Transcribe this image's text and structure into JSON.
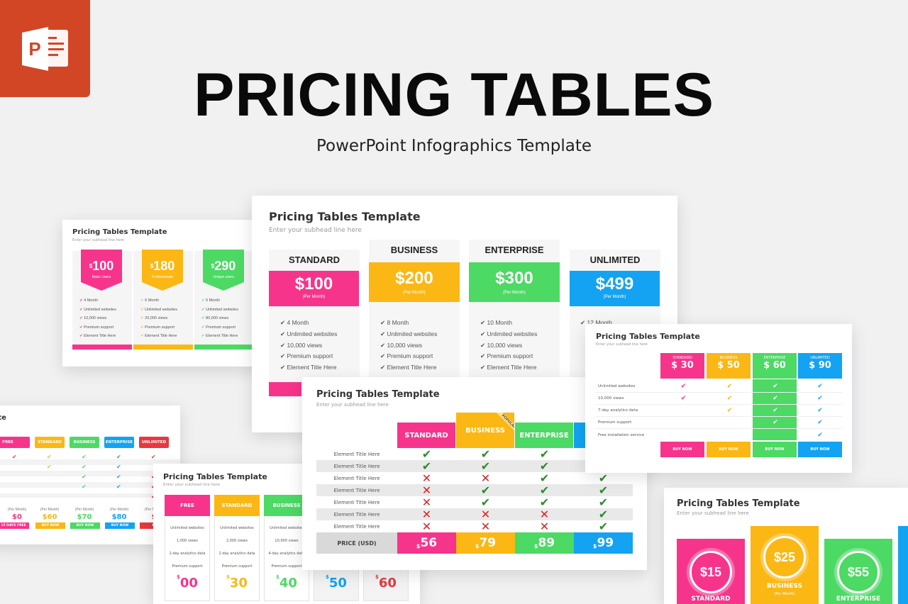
{
  "header": {
    "title": "PRICING TABLES",
    "subtitle": "PowerPoint Infographics Template"
  },
  "colors": {
    "pink": "#f7348b",
    "yellow": "#fbb714",
    "green": "#4cd964",
    "blue": "#13a3f2",
    "red": "#e8383d",
    "ppt_orange": "#d24625"
  },
  "icons": [
    "powerpoint-icon",
    "check-icon",
    "x-icon",
    "check-circle-icon"
  ],
  "slide_title": "Pricing Tables Template",
  "slide_subhead": "Enter your subhead line here",
  "s1": {
    "plans": [
      {
        "price": "100",
        "note": "Basic Users"
      },
      {
        "price": "180",
        "note": "Professionals"
      },
      {
        "price": "290",
        "note": "Unique users"
      }
    ],
    "features": [
      "4 Month",
      "Unlimited websites",
      "10,000 views",
      "Premium support",
      "Element Title Here"
    ],
    "features_b": [
      "6 Month",
      "Unlimited websites",
      "20,000 views",
      "Premium support",
      "Element Title Here"
    ],
    "features_c": [
      "6 Month",
      "Unlimited websites",
      "80,000 views",
      "Premium support",
      "Element Title Here"
    ]
  },
  "s2": {
    "plans": [
      {
        "name": "STANDARD",
        "price": "$100",
        "per": "(Per Month)",
        "features": [
          "4 Month",
          "Unlimited websites",
          "10,000 views",
          "Premium support",
          "Element Title Here"
        ]
      },
      {
        "name": "BUSINESS",
        "price": "$200",
        "per": "(Per Month)",
        "features": [
          "8 Month",
          "Unlimited websites",
          "10,000 views",
          "Premium support",
          "Element Title Here"
        ]
      },
      {
        "name": "ENTERPRISE",
        "price": "$300",
        "per": "(Per Month)",
        "features": [
          "10 Month",
          "Unlimited websites",
          "10,000 views",
          "Premium support",
          "Element Title Here"
        ]
      },
      {
        "name": "UNLIMITED",
        "price": "$499",
        "per": "(Per Month)",
        "features": [
          "12 Month"
        ]
      }
    ]
  },
  "s3": {
    "title_partial": "plate",
    "plans": [
      "FREE",
      "STANDARD",
      "BUSINESS",
      "ENTERPRISE",
      "UNLIMITED"
    ],
    "per": "(Per Month)",
    "prices": [
      "$0",
      "$60",
      "$70",
      "$80",
      "$"
    ],
    "buttons": [
      "15 DAYS FREE",
      "BUY NOW",
      "BUY NOW",
      "BUY NOW",
      "BU"
    ]
  },
  "s4": {
    "plans": [
      "FREE",
      "STANDARD",
      "BUSINESS"
    ],
    "rows": [
      [
        "Unlimited websites",
        "Unlimited websites",
        "Unlimited websites"
      ],
      [
        "1,000 views",
        "2,000 views",
        "10,000 views"
      ],
      [
        "1-day analytics data",
        "2-day analytics data",
        "4-day analytics data"
      ],
      [
        "Premium support",
        "Premium support",
        "Premium support"
      ]
    ],
    "prices": [
      "00",
      "30",
      "40",
      "50",
      "60"
    ]
  },
  "s5": {
    "plans": [
      "STANDARD",
      "BUSINESS",
      "ENTERPRISE"
    ],
    "ribbon": "POPULAR",
    "rows": [
      "Element Title Here",
      "Element Title Here",
      "Element Title Here",
      "Element Title Here",
      "Element Title Here",
      "Element Title Here",
      "Element Title Here"
    ],
    "price_label": "PRICE (USD)",
    "prices": [
      "56",
      "79",
      "89",
      "99"
    ]
  },
  "s6": {
    "plans": [
      {
        "name": "STANDARD",
        "price": "$ 30"
      },
      {
        "name": "BUSINESS",
        "price": "$ 50"
      },
      {
        "name": "ENTERPRISE",
        "price": "$ 60"
      },
      {
        "name": "UNLIMITED",
        "price": "$ 90"
      }
    ],
    "rows": [
      "Unlimited websites",
      "10,000 views",
      "7-day analytics data",
      "Premium support",
      "Free installation service"
    ],
    "button": "BUY NOW"
  },
  "s7": {
    "plans": [
      {
        "price": "$15",
        "name": "STANDARD",
        "sub": ""
      },
      {
        "price": "$25",
        "name": "BUSINESS",
        "sub": "(Per Month)"
      },
      {
        "price": "$55",
        "name": "ENTERPRISE",
        "sub": ""
      }
    ]
  }
}
